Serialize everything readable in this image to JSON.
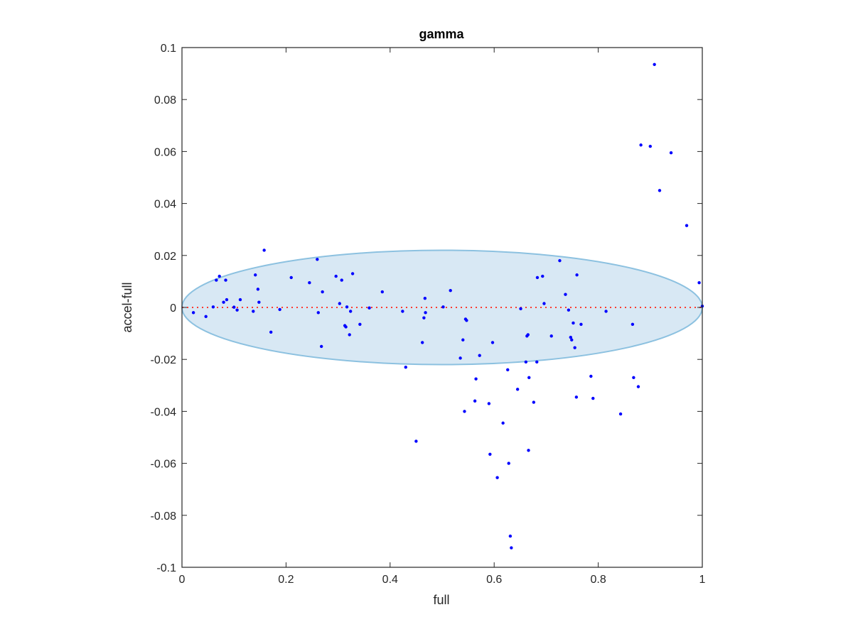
{
  "chart_data": {
    "type": "scatter",
    "title": "gamma",
    "xlabel": "full",
    "ylabel": "accel-full",
    "xlim": [
      0,
      1
    ],
    "ylim": [
      -0.1,
      0.1
    ],
    "xticks": [
      0,
      0.2,
      0.4,
      0.6,
      0.8,
      1
    ],
    "xtick_labels": [
      "0",
      "0.2",
      "0.4",
      "0.6",
      "0.8",
      "1"
    ],
    "yticks": [
      -0.1,
      -0.08,
      -0.06,
      -0.04,
      -0.02,
      0,
      0.02,
      0.04,
      0.06,
      0.08,
      0.1
    ],
    "ytick_labels": [
      "-0.1",
      "-0.08",
      "-0.06",
      "-0.04",
      "-0.02",
      "0",
      "0.02",
      "0.04",
      "0.06",
      "0.08",
      "0.1"
    ],
    "grid": false,
    "reference_line": {
      "y": 0,
      "style": "dotted",
      "color": "#ff3b30"
    },
    "ellipse": {
      "cx": 0.5,
      "cy": 0,
      "rx": 0.5,
      "ry": 0.022,
      "fill": "#d8e8f4",
      "stroke": "#8cc1e0"
    },
    "series": [
      {
        "color": "#0000ff",
        "points": [
          [
            0.022,
            -0.002
          ],
          [
            0.046,
            -0.0035
          ],
          [
            0.06,
            0.0002
          ],
          [
            0.066,
            0.0105
          ],
          [
            0.072,
            0.012
          ],
          [
            0.08,
            0.002
          ],
          [
            0.084,
            0.0105
          ],
          [
            0.086,
            0.003
          ],
          [
            0.1,
            0.0001
          ],
          [
            0.106,
            -0.001
          ],
          [
            0.112,
            0.003
          ],
          [
            0.137,
            -0.0015
          ],
          [
            0.141,
            0.0125
          ],
          [
            0.146,
            0.007
          ],
          [
            0.148,
            0.002
          ],
          [
            0.158,
            0.022
          ],
          [
            0.171,
            -0.0095
          ],
          [
            0.188,
            -0.0008
          ],
          [
            0.21,
            0.0115
          ],
          [
            0.245,
            0.0095
          ],
          [
            0.26,
            0.0185
          ],
          [
            0.262,
            -0.002
          ],
          [
            0.268,
            -0.015
          ],
          [
            0.27,
            0.006
          ],
          [
            0.296,
            0.012
          ],
          [
            0.303,
            0.0015
          ],
          [
            0.307,
            0.0105
          ],
          [
            0.313,
            -0.007
          ],
          [
            0.315,
            -0.0075
          ],
          [
            0.317,
            0.0002
          ],
          [
            0.322,
            -0.0105
          ],
          [
            0.324,
            -0.0015
          ],
          [
            0.328,
            0.013
          ],
          [
            0.342,
            -0.0065
          ],
          [
            0.36,
            -0.0002
          ],
          [
            0.385,
            0.006
          ],
          [
            0.424,
            -0.0015
          ],
          [
            0.43,
            -0.023
          ],
          [
            0.45,
            -0.0515
          ],
          [
            0.462,
            -0.0135
          ],
          [
            0.465,
            -0.004
          ],
          [
            0.467,
            0.0035
          ],
          [
            0.468,
            -0.002
          ],
          [
            0.502,
            0.0002
          ],
          [
            0.516,
            0.0065
          ],
          [
            0.535,
            -0.0195
          ],
          [
            0.54,
            -0.0125
          ],
          [
            0.543,
            -0.04
          ],
          [
            0.545,
            -0.0045
          ],
          [
            0.547,
            -0.005
          ],
          [
            0.563,
            -0.036
          ],
          [
            0.565,
            -0.0275
          ],
          [
            0.572,
            -0.0185
          ],
          [
            0.59,
            -0.037
          ],
          [
            0.592,
            -0.0565
          ],
          [
            0.597,
            -0.0135
          ],
          [
            0.606,
            -0.0655
          ],
          [
            0.617,
            -0.0445
          ],
          [
            0.626,
            -0.024
          ],
          [
            0.628,
            -0.06
          ],
          [
            0.631,
            -0.088
          ],
          [
            0.633,
            -0.0925
          ],
          [
            0.645,
            -0.0315
          ],
          [
            0.651,
            -0.0005
          ],
          [
            0.661,
            -0.021
          ],
          [
            0.663,
            -0.011
          ],
          [
            0.665,
            -0.0105
          ],
          [
            0.666,
            -0.055
          ],
          [
            0.667,
            -0.027
          ],
          [
            0.676,
            -0.0365
          ],
          [
            0.682,
            -0.021
          ],
          [
            0.683,
            0.0115
          ],
          [
            0.693,
            0.012
          ],
          [
            0.696,
            0.0015
          ],
          [
            0.71,
            -0.011
          ],
          [
            0.726,
            0.018
          ],
          [
            0.737,
            0.005
          ],
          [
            0.743,
            -0.001
          ],
          [
            0.747,
            -0.0115
          ],
          [
            0.749,
            -0.0125
          ],
          [
            0.752,
            -0.006
          ],
          [
            0.755,
            -0.0155
          ],
          [
            0.758,
            -0.0345
          ],
          [
            0.759,
            0.0125
          ],
          [
            0.767,
            -0.0065
          ],
          [
            0.786,
            -0.0265
          ],
          [
            0.79,
            -0.035
          ],
          [
            0.815,
            -0.0015
          ],
          [
            0.843,
            -0.041
          ],
          [
            0.866,
            -0.0065
          ],
          [
            0.868,
            -0.027
          ],
          [
            0.877,
            -0.0305
          ],
          [
            0.882,
            0.0625
          ],
          [
            0.9,
            0.062
          ],
          [
            0.908,
            0.0935
          ],
          [
            0.918,
            0.045
          ],
          [
            0.94,
            0.0595
          ],
          [
            0.97,
            0.0315
          ],
          [
            0.994,
            0.0095
          ],
          [
            1.0,
            0.0005
          ]
        ]
      }
    ]
  }
}
